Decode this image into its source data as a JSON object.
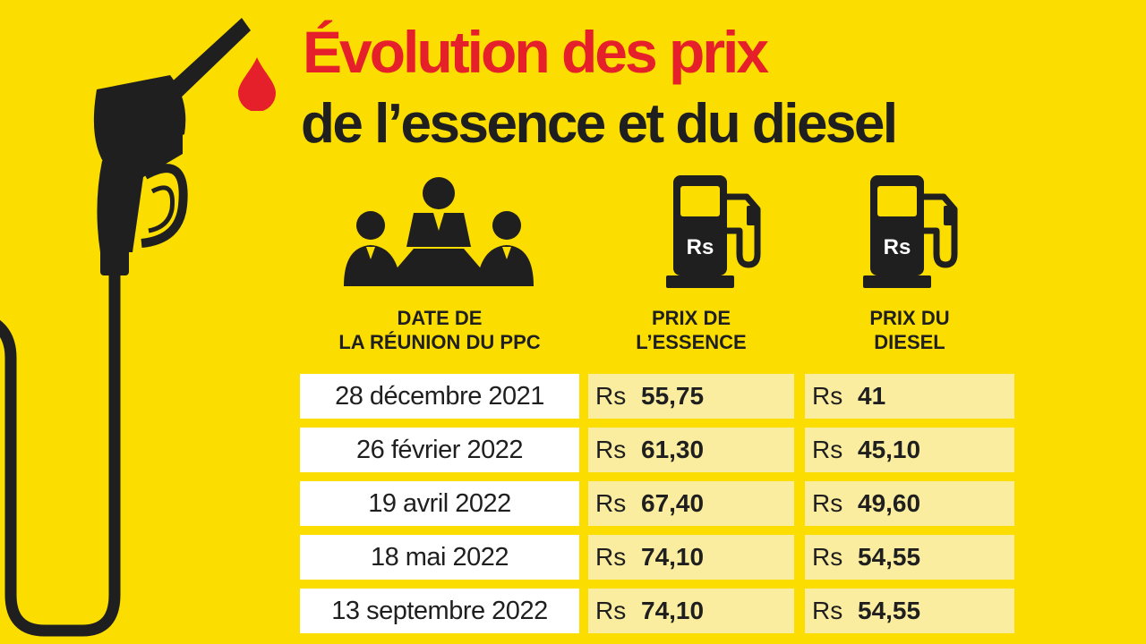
{
  "title_line1": "Évolution des prix",
  "title_line2": "de l’essence et du diesel",
  "headers": {
    "date": [
      "DATE DE",
      "LA RÉUNION DU PPC"
    ],
    "essence": [
      "PRIX DE",
      "L’ESSENCE"
    ],
    "diesel": [
      "PRIX DU",
      "DIESEL"
    ]
  },
  "pump_icon_label": "Rs",
  "currency": "Rs",
  "icons": [
    "fuel-nozzle-icon",
    "fuel-drop-icon",
    "meeting-icon",
    "fuel-pump-icon"
  ],
  "colors": {
    "background": "#FBDD00",
    "accent": "#E6202A",
    "dark": "#1F1F1F",
    "cell_light": "#FBEDA0"
  },
  "chart_data": {
    "type": "table",
    "columns": [
      "DATE DE LA RÉUNION DU PPC",
      "PRIX DE L’ESSENCE",
      "PRIX DU DIESEL"
    ],
    "rows": [
      {
        "date": "28 décembre 2021",
        "essence": "55,75",
        "diesel": "41"
      },
      {
        "date": "26 février 2022",
        "essence": "61,30",
        "diesel": "45,10"
      },
      {
        "date": "19 avril 2022",
        "essence": "67,40",
        "diesel": "49,60"
      },
      {
        "date": "18 mai 2022",
        "essence": "74,10",
        "diesel": "54,55"
      },
      {
        "date": "13 septembre 2022",
        "essence": "74,10",
        "diesel": "54,55"
      }
    ]
  }
}
